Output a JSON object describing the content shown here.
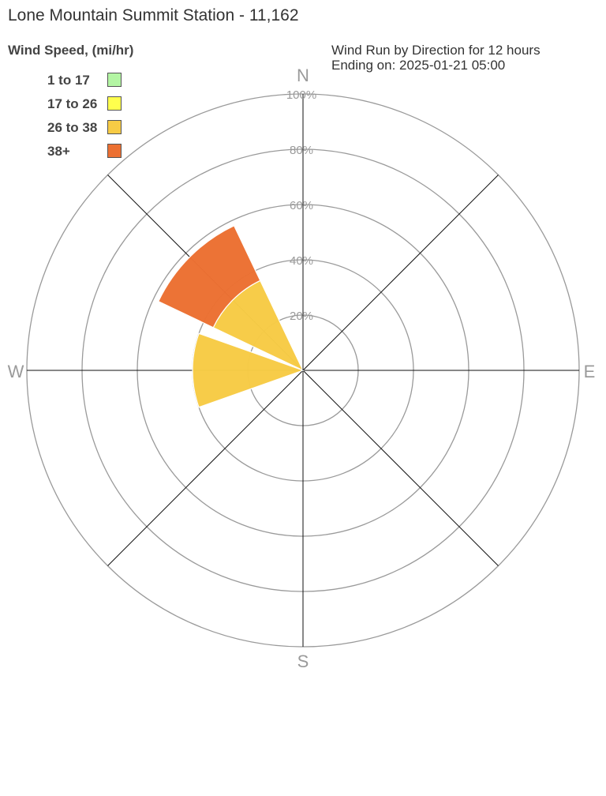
{
  "title": "Lone Mountain Summit Station - 11,162",
  "legend_title": "Wind Speed, (mi/hr)",
  "subtitle_line1": "Wind Run by Direction for 12 hours",
  "subtitle_line2": "Ending on: 2025-01-21 05:00",
  "legend": [
    {
      "label": "1 to 17",
      "color": "#b3f5a3"
    },
    {
      "label": "17 to 26",
      "color": "#ffff4d"
    },
    {
      "label": "26 to 38",
      "color": "#f7cb45"
    },
    {
      "label": "38+",
      "color": "#ec7032"
    }
  ],
  "chart_data": {
    "type": "polar-bar",
    "compass": {
      "n": "N",
      "e": "E",
      "s": "S",
      "w": "W"
    },
    "radial_ticks": [
      "20%",
      "40%",
      "60%",
      "80%",
      "100%"
    ],
    "rmax": 100,
    "directions": [
      {
        "direction": "NW",
        "bearing": 315,
        "bins": [
          {
            "speed": "26 to 38",
            "value": 36
          },
          {
            "speed": "38+",
            "value": 22
          }
        ]
      },
      {
        "direction": "W",
        "bearing": 270,
        "bins": [
          {
            "speed": "26 to 38",
            "value": 40
          }
        ]
      }
    ]
  }
}
